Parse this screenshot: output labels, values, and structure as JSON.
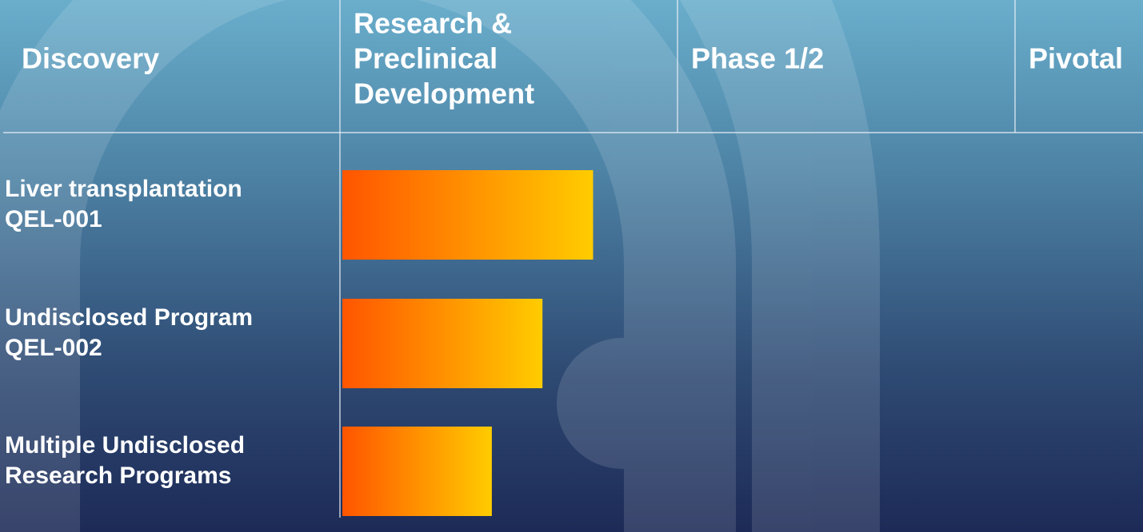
{
  "chart_data": {
    "type": "pipeline",
    "stages": [
      [
        "Discovery"
      ],
      [
        "Research &",
        "Preclinical",
        "Development"
      ],
      [
        "Phase 1/2"
      ],
      [
        "Pivotal"
      ]
    ],
    "categories": [
      [
        "Liver transplantation",
        "QEL-001"
      ],
      [
        "Undisclosed Program",
        "QEL-002"
      ],
      [
        "Multiple Undisclosed",
        "Research Programs"
      ]
    ],
    "values": [
      0.75,
      0.6,
      0.45
    ],
    "colors": [
      "#ff5500",
      "#ffcc00"
    ]
  }
}
